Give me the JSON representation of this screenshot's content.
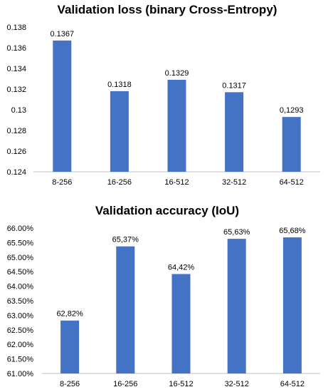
{
  "chart_data": [
    {
      "type": "bar",
      "title": "Validation loss (binary Cross-Entropy)",
      "categories": [
        "8-256",
        "16-256",
        "16-512",
        "32-512",
        "64-512"
      ],
      "values": [
        0.1367,
        0.1318,
        0.1329,
        0.1317,
        0.1293
      ],
      "data_labels": [
        "0.1367",
        "0.1318",
        "0.1329",
        "0.1317",
        "0,1293"
      ],
      "yticks": [
        0.124,
        0.126,
        0.128,
        0.13,
        0.132,
        0.134,
        0.136,
        0.138
      ],
      "ytick_labels": [
        "0.124",
        "0.126",
        "0.128",
        "0.13",
        "0.132",
        "0.134",
        "0.136",
        "0.138"
      ],
      "ylim": [
        0.124,
        0.138
      ],
      "grid": false,
      "legend": "none",
      "bar_color": "#4472c4"
    },
    {
      "type": "bar",
      "title": "Validation accuracy (IoU)",
      "categories": [
        "8-256",
        "16-256",
        "16-512",
        "32-512",
        "64-512"
      ],
      "values": [
        62.82,
        65.37,
        64.42,
        65.63,
        65.68
      ],
      "data_labels": [
        "62,82%",
        "65,37%",
        "64,42%",
        "65,63%",
        "65,68%"
      ],
      "yticks": [
        61.0,
        61.5,
        62.0,
        62.5,
        63.0,
        63.5,
        64.0,
        64.5,
        65.0,
        65.5,
        66.0
      ],
      "ytick_labels": [
        "61.00%",
        "61.50%",
        "62.00%",
        "62.50%",
        "63.00%",
        "63.50%",
        "64.00%",
        "64.50%",
        "65.00%",
        "65.50%",
        "66.00%"
      ],
      "ylim": [
        61.0,
        66.0
      ],
      "grid": false,
      "legend": "none",
      "bar_color": "#4472c4"
    }
  ]
}
